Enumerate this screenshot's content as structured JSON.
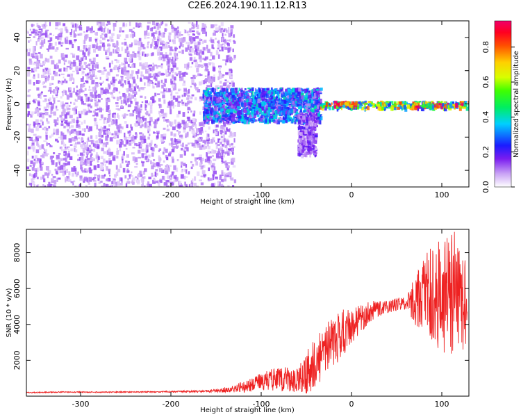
{
  "title": "C2E6.2024.190.11.12.R13",
  "chart_data": [
    {
      "type": "heatmap",
      "xlabel": "Height of straight line (km)",
      "ylabel": "Frequency (Hz)",
      "xlim": [
        -360,
        130
      ],
      "ylim": [
        -50,
        50
      ],
      "xticks": [
        -300,
        -200,
        -100,
        0,
        100
      ],
      "yticks": [
        -40,
        -20,
        0,
        20,
        40
      ],
      "colorbar": {
        "label": "Normalized spectral amplitude",
        "range": [
          0,
          0.95
        ],
        "ticks": [
          0.0,
          0.2,
          0.4,
          0.6,
          0.8
        ]
      },
      "regions": [
        {
          "x_range": [
            -360,
            -130
          ],
          "frequency_range": [
            -50,
            50
          ],
          "amplitude": 0.1
        },
        {
          "x_range": [
            -165,
            -35
          ],
          "frequency_range": [
            -10,
            10
          ],
          "amplitude": 0.3
        },
        {
          "x_range": [
            -60,
            -40
          ],
          "frequency_range": [
            -30,
            -5
          ],
          "amplitude": 0.15
        },
        {
          "x_range": [
            -35,
            130
          ],
          "frequency_range": [
            -2,
            2
          ],
          "amplitude": 0.6
        },
        {
          "x_range": [
            -20,
            5
          ],
          "frequency_range": [
            -1,
            2
          ],
          "amplitude": 0.85
        },
        {
          "x_range": [
            70,
            125
          ],
          "frequency_range": [
            -1,
            1
          ],
          "amplitude": 0.85
        }
      ]
    },
    {
      "type": "line",
      "xlabel": "Height of straight line (km)",
      "ylabel": "SNR (10 * v/v)",
      "xlim": [
        -360,
        130
      ],
      "ylim": [
        0,
        9300
      ],
      "xticks": [
        -300,
        -200,
        -100,
        0,
        100
      ],
      "yticks": [
        2000,
        4000,
        6000,
        8000
      ],
      "series": [
        {
          "color": "#ee2222",
          "x": [
            -360,
            -320,
            -280,
            -240,
            -200,
            -160,
            -140,
            -120,
            -100,
            -80,
            -60,
            -50,
            -40,
            -30,
            -20,
            -10,
            0,
            10,
            20,
            30,
            40,
            50,
            60,
            70,
            80,
            90,
            100,
            110,
            120,
            128
          ],
          "y": [
            200,
            230,
            220,
            230,
            250,
            270,
            350,
            500,
            800,
            1000,
            900,
            1300,
            1800,
            2500,
            3000,
            3500,
            3900,
            4300,
            4700,
            4900,
            5000,
            5100,
            5200,
            5300,
            5600,
            5900,
            5700,
            5900,
            5500,
            5000
          ],
          "noise_amplitude": [
            30,
            30,
            30,
            30,
            40,
            60,
            150,
            300,
            500,
            700,
            700,
            1200,
            1500,
            1500,
            1500,
            1400,
            1000,
            800,
            600,
            450,
            400,
            350,
            400,
            1300,
            2300,
            3000,
            3300,
            3600,
            3300,
            2500
          ]
        }
      ]
    }
  ]
}
